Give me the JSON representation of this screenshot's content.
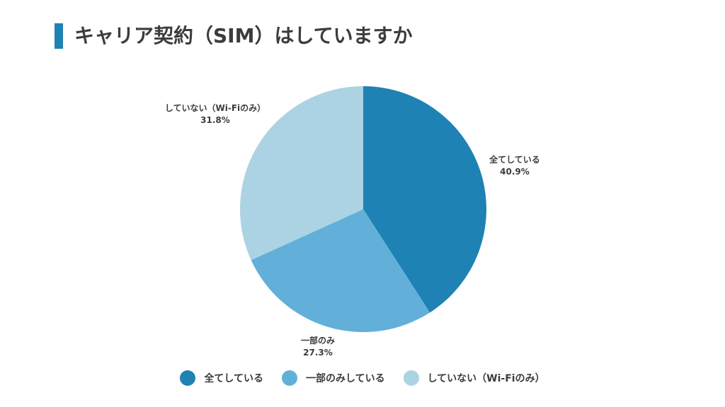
{
  "page": {
    "title": "キャリア契約（SIM）はしていますか"
  },
  "colors": {
    "accent": "#1e82b4",
    "text": "#3c3c3c"
  },
  "chart_data": {
    "type": "pie",
    "title": "キャリア契約（SIM）はしていますか",
    "slices": [
      {
        "label": "全てしている",
        "value": 40.9,
        "value_label": "40.9%",
        "color": "#1e82b4"
      },
      {
        "label": "一部のみ",
        "value": 27.3,
        "value_label": "27.3%",
        "color": "#62b0d9"
      },
      {
        "label": "していない（Wi-Fiのみ）",
        "value": 31.8,
        "value_label": "31.8%",
        "color": "#acd3e3"
      }
    ],
    "legend": {
      "placement": "bottom",
      "entries": [
        {
          "label": "全てしている",
          "color": "#1e82b4"
        },
        {
          "label": "一部のみしている",
          "color": "#62b0d9"
        },
        {
          "label": "していない（Wi-Fiのみ）",
          "color": "#acd3e3"
        }
      ]
    }
  }
}
